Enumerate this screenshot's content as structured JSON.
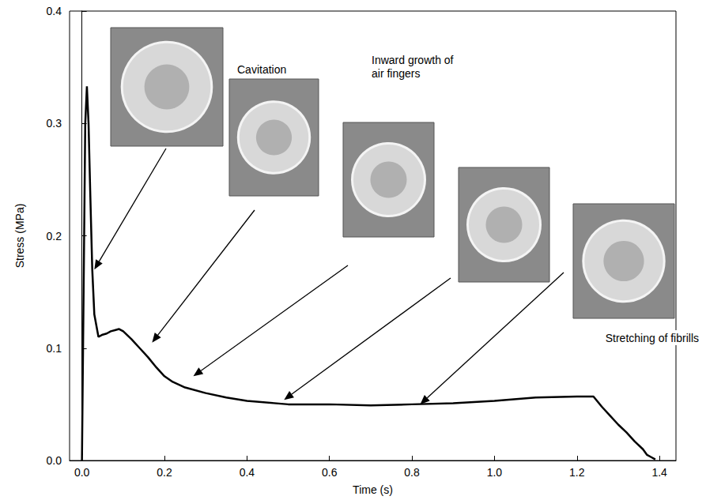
{
  "chart_data": {
    "type": "line",
    "xlabel": "Time (s)",
    "ylabel": "Stress (MPa)",
    "x": [
      0.0,
      0.004,
      0.008,
      0.012,
      0.016,
      0.02,
      0.025,
      0.03,
      0.035,
      0.04,
      0.05,
      0.06,
      0.07,
      0.08,
      0.09,
      0.1,
      0.12,
      0.14,
      0.16,
      0.18,
      0.2,
      0.22,
      0.25,
      0.3,
      0.35,
      0.4,
      0.5,
      0.6,
      0.7,
      0.8,
      0.9,
      1.0,
      1.1,
      1.2,
      1.24,
      1.26,
      1.28,
      1.3,
      1.32,
      1.34,
      1.36,
      1.37,
      1.38,
      1.39
    ],
    "values": [
      0.0,
      0.15,
      0.3,
      0.333,
      0.3,
      0.24,
      0.17,
      0.13,
      0.12,
      0.11,
      0.112,
      0.113,
      0.115,
      0.116,
      0.117,
      0.115,
      0.108,
      0.1,
      0.092,
      0.083,
      0.075,
      0.07,
      0.065,
      0.06,
      0.056,
      0.053,
      0.05,
      0.05,
      0.049,
      0.05,
      0.051,
      0.053,
      0.056,
      0.057,
      0.057,
      0.048,
      0.04,
      0.032,
      0.025,
      0.017,
      0.01,
      0.005,
      0.003,
      0.001
    ],
    "color": "#000000",
    "xlim": [
      -0.03,
      1.44
    ],
    "xticks": [
      {
        "value": 0,
        "label": "0.0"
      },
      0.2,
      0.4,
      0.6,
      0.8,
      {
        "value": 1,
        "label": "1.0"
      },
      1.2,
      1.4
    ],
    "ylim": [
      0,
      0.4
    ],
    "yticks": [
      {
        "value": 0,
        "label": "0.0"
      },
      0.1,
      0.2,
      0.3,
      0.4
    ],
    "grid": false,
    "annotations": [
      "Cavitation",
      "Inward growth of air fingers",
      "Stretching of fibrills"
    ],
    "snapshots": [
      {
        "x": 0.03,
        "y": 0.17
      },
      {
        "x": 0.17,
        "y": 0.105
      },
      {
        "x": 0.27,
        "y": 0.075
      },
      {
        "x": 0.49,
        "y": 0.054
      },
      {
        "x": 0.82,
        "y": 0.05
      }
    ]
  }
}
